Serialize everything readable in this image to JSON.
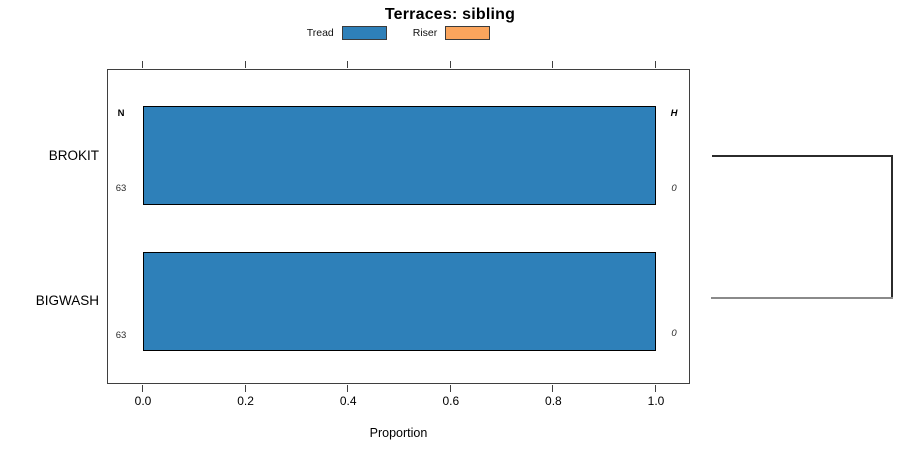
{
  "title": "Terraces: sibling",
  "legend": {
    "items": [
      {
        "label": "Tread",
        "color": "#2E80B9"
      },
      {
        "label": "Riser",
        "color": "#FBA55D"
      }
    ]
  },
  "axis": {
    "xlabel": "Proportion",
    "ticks": [
      "0.0",
      "0.2",
      "0.4",
      "0.6",
      "0.8",
      "1.0"
    ]
  },
  "columns": {
    "left_header": "N",
    "right_header": "H"
  },
  "rows": [
    {
      "category": "BROKIT",
      "n": "63",
      "h": "0"
    },
    {
      "category": "BIGWASH",
      "n": "63",
      "h": "0"
    }
  ],
  "chart_data": {
    "type": "bar",
    "orientation": "horizontal",
    "title": "Terraces: sibling",
    "xlabel": "Proportion",
    "ylabel": "",
    "xlim": [
      0,
      1
    ],
    "xticks": [
      0.0,
      0.2,
      0.4,
      0.6,
      0.8,
      1.0
    ],
    "categories": [
      "BROKIT",
      "BIGWASH"
    ],
    "series": [
      {
        "name": "Tread",
        "color": "#2E80B9",
        "values": [
          1.0,
          1.0
        ]
      },
      {
        "name": "Riser",
        "color": "#FBA55D",
        "values": [
          0.0,
          0.0
        ]
      }
    ],
    "legend_position": "top",
    "grid": false,
    "annotations": {
      "left_header": "N",
      "left_values": [
        63,
        63
      ],
      "right_header": "H",
      "right_values": [
        0,
        0
      ]
    },
    "right_linkage_bracket": {
      "present": true,
      "joins": [
        "BROKIT",
        "BIGWASH"
      ],
      "top_line_color": "#2b2b2b",
      "bottom_line_color": "#8a8a8a"
    }
  }
}
